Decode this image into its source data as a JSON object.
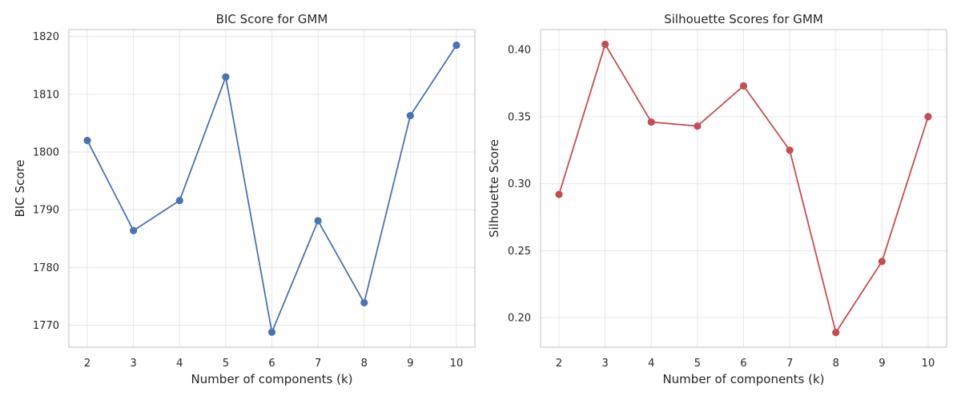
{
  "colors": {
    "left_series": "#4c72b0",
    "right_series": "#c44e52"
  },
  "chart_data": [
    {
      "type": "line",
      "title": "BIC Score for GMM",
      "xlabel": "Number of components (k)",
      "ylabel": "BIC Score",
      "x": [
        2,
        3,
        4,
        5,
        6,
        7,
        8,
        9,
        10
      ],
      "series": [
        {
          "values": [
            1802.0,
            1786.4,
            1791.6,
            1813.0,
            1768.8,
            1788.1,
            1773.9,
            1806.3,
            1818.5
          ]
        }
      ],
      "xlim": [
        1.6,
        10.4
      ],
      "ylim": [
        1766.2,
        1821.2
      ],
      "xticks": [
        2,
        3,
        4,
        5,
        6,
        7,
        8,
        9,
        10
      ],
      "yticks": [
        1770,
        1780,
        1790,
        1800,
        1810,
        1820
      ],
      "grid": true,
      "marker": "circle"
    },
    {
      "type": "line",
      "title": "Silhouette Scores for GMM",
      "xlabel": "Number of components (k)",
      "ylabel": "Silhouette Score",
      "x": [
        2,
        3,
        4,
        5,
        6,
        7,
        8,
        9,
        10
      ],
      "series": [
        {
          "values": [
            0.292,
            0.404,
            0.346,
            0.343,
            0.373,
            0.325,
            0.189,
            0.242,
            0.35
          ]
        }
      ],
      "xlim": [
        1.6,
        10.4
      ],
      "ylim": [
        0.178,
        0.415
      ],
      "xticks": [
        2,
        3,
        4,
        5,
        6,
        7,
        8,
        9,
        10
      ],
      "yticks": [
        "0.20",
        "0.25",
        "0.30",
        "0.35",
        "0.40"
      ],
      "grid": true,
      "marker": "circle"
    }
  ]
}
